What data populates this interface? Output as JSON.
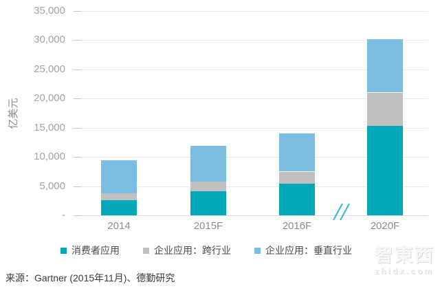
{
  "chart_data": {
    "type": "bar",
    "stacked": true,
    "title": "",
    "xlabel": "",
    "ylabel": "亿美元",
    "categories": [
      "2014",
      "2015F",
      "2016F",
      "2020F"
    ],
    "series": [
      {
        "name": "消费者应用",
        "color": "#00a8ba",
        "values": [
          2570,
          4160,
          5460,
          15340
        ]
      },
      {
        "name": "企业应用：跨行业",
        "color": "#c0c0c0",
        "values": [
          1150,
          1550,
          2010,
          5660
        ]
      },
      {
        "name": "企业应用：垂直行业",
        "color": "#7cbde3",
        "values": [
          5670,
          6120,
          6560,
          9110
        ]
      }
    ],
    "ylim": [
      0,
      35000
    ],
    "y_tick_step": 5000,
    "y_ticks": [
      "35,000",
      "30,000",
      "25,000",
      "20,000",
      "15,000",
      "10,000",
      "5,000",
      "-"
    ],
    "grid": "horizontal",
    "legend_position": "bottom",
    "axis_break_between": [
      "2016F",
      "2020F"
    ],
    "axis_break_color": "#3fbdd0"
  },
  "source_note": "来源：Gartner (2015年11月)、德勤研究",
  "watermark": {
    "logo_text": "智東西",
    "url": "zhidx.com"
  }
}
